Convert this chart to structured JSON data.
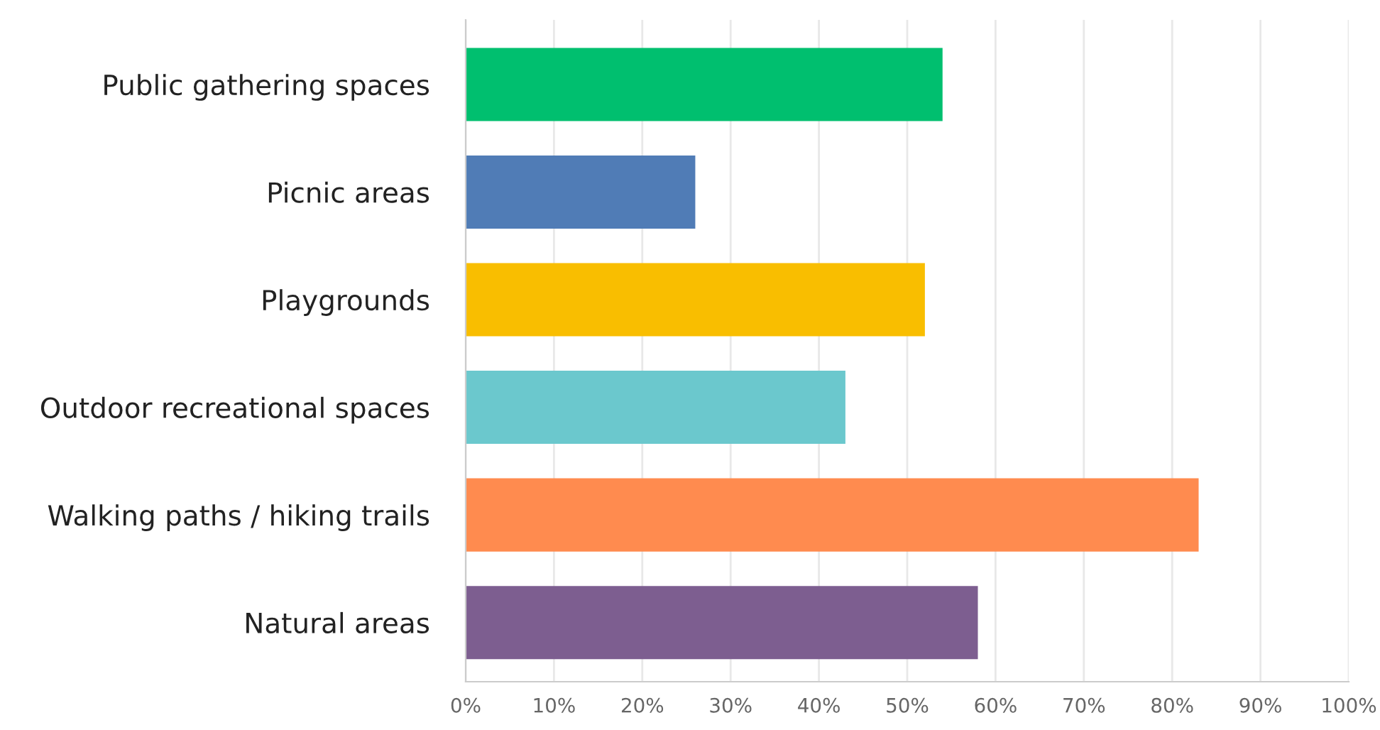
{
  "chart_data": {
    "type": "bar",
    "orientation": "horizontal",
    "categories": [
      "Public gathering spaces",
      "Picnic areas",
      "Playgrounds",
      "Outdoor recreational spaces",
      "Walking paths / hiking trails",
      "Natural areas"
    ],
    "values": [
      54,
      26,
      52,
      43,
      83,
      58
    ],
    "colors": [
      "#00bf6f",
      "#507cb6",
      "#f9be00",
      "#6bc8cd",
      "#ff8b4f",
      "#7d5e90"
    ],
    "xlim": [
      0,
      100
    ],
    "xticks": [
      {
        "value": 0,
        "label": "0%"
      },
      {
        "value": 10,
        "label": "10%"
      },
      {
        "value": 20,
        "label": "20%"
      },
      {
        "value": 30,
        "label": "30%"
      },
      {
        "value": 40,
        "label": "40%"
      },
      {
        "value": 50,
        "label": "50%"
      },
      {
        "value": 60,
        "label": "60%"
      },
      {
        "value": 70,
        "label": "70%"
      },
      {
        "value": 80,
        "label": "80%"
      },
      {
        "value": 90,
        "label": "90%"
      },
      {
        "value": 100,
        "label": "100%"
      }
    ],
    "grid": "x",
    "legend": false
  }
}
